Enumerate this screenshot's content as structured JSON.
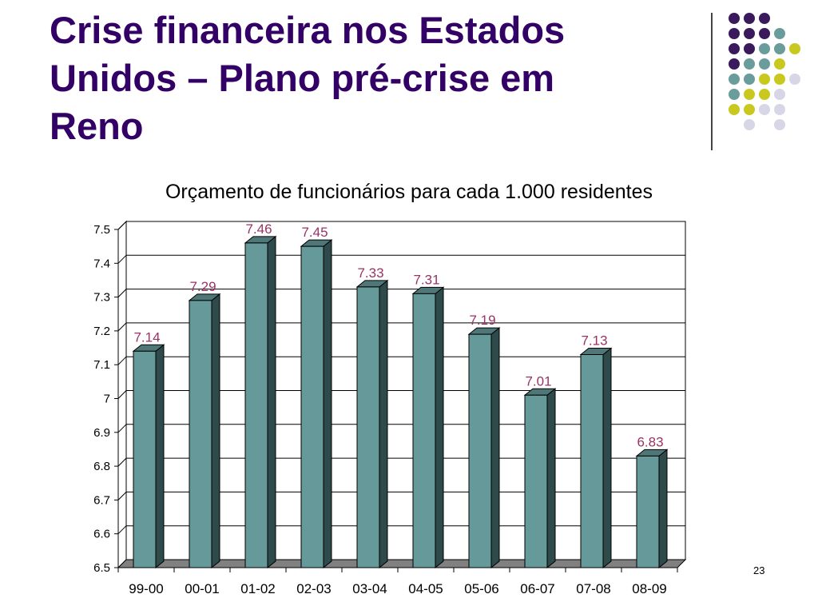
{
  "slide": {
    "title_lines": [
      "Crise financeira nos Estados",
      "Unidos – Plano pré-crise em",
      "Reno"
    ],
    "page_number": "23"
  },
  "decoration": {
    "dot_colors": {
      "purple": "#3a1a5c",
      "teal": "#6a9c9c",
      "yellow": "#c8c81e",
      "lavender": "#d6d6e6"
    }
  },
  "chart_data": {
    "type": "bar",
    "title": "Orçamento de funcionários para cada 1.000 residentes",
    "xlabel": "",
    "ylabel": "",
    "categories": [
      "99-00",
      "00-01",
      "01-02",
      "02-03",
      "03-04",
      "04-05",
      "05-06",
      "06-07",
      "07-08",
      "08-09"
    ],
    "values": [
      7.14,
      7.29,
      7.46,
      7.45,
      7.33,
      7.31,
      7.19,
      7.01,
      7.13,
      6.83
    ],
    "data_labels": [
      "7.14",
      "7.29",
      "7.46",
      "7.45",
      "7.33",
      "7.31",
      "7.19",
      "7.01",
      "7.13",
      "6.83"
    ],
    "ylim": [
      6.5,
      7.5
    ],
    "yticks": [
      "6.5",
      "6.6",
      "6.7",
      "6.8",
      "6.9",
      "7",
      "7.1",
      "7.2",
      "7.3",
      "7.4",
      "7.5"
    ],
    "grid": true,
    "legend": false,
    "style": "3d-column",
    "colors": {
      "bar_front": "#669999",
      "bar_side": "#2f4a4a",
      "bar_top": "#4f7777",
      "label": "#993366",
      "floor": "#808080"
    }
  }
}
